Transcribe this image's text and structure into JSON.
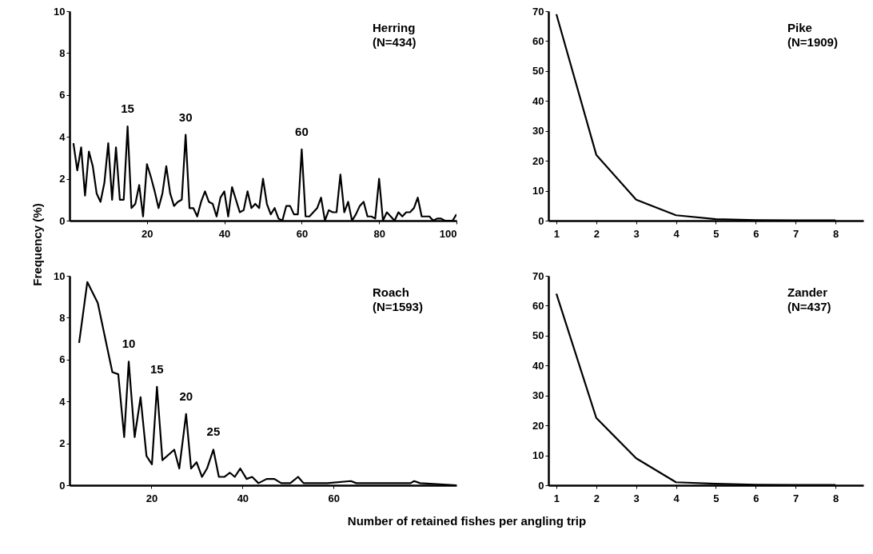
{
  "chart_data": [
    {
      "type": "line",
      "title": "Herring\n(N=434)",
      "ylabel": "Frequency (%)",
      "color": "#000000",
      "xlim": [
        0,
        100
      ],
      "xticks": [
        20,
        40,
        60,
        80,
        100
      ],
      "ylim": [
        0,
        10
      ],
      "yticks": [
        0,
        2,
        4,
        6,
        8,
        10
      ],
      "grid": false,
      "x": [
        1,
        2,
        3,
        4,
        5,
        6,
        7,
        8,
        9,
        10,
        11,
        12,
        13,
        14,
        15,
        16,
        17,
        18,
        19,
        20,
        21,
        22,
        23,
        24,
        25,
        26,
        27,
        28,
        29,
        30,
        31,
        32,
        33,
        34,
        35,
        36,
        37,
        38,
        39,
        40,
        41,
        42,
        43,
        44,
        45,
        46,
        47,
        48,
        49,
        50,
        51,
        52,
        53,
        54,
        55,
        56,
        57,
        58,
        59,
        60,
        61,
        62,
        63,
        64,
        65,
        66,
        67,
        68,
        69,
        70,
        71,
        72,
        73,
        74,
        75,
        76,
        77,
        78,
        79,
        80,
        81,
        82,
        83,
        84,
        85,
        86,
        87,
        88,
        89,
        90,
        91,
        92,
        93,
        94,
        95,
        96,
        97,
        98,
        99,
        100
      ],
      "values": [
        3.7,
        2.4,
        3.5,
        1.2,
        3.3,
        2.6,
        1.3,
        0.9,
        1.8,
        3.7,
        1.0,
        3.5,
        1.0,
        1.0,
        4.5,
        0.6,
        0.8,
        1.7,
        0.2,
        2.7,
        2.1,
        1.4,
        0.6,
        1.3,
        2.6,
        1.3,
        0.7,
        0.9,
        1.0,
        4.1,
        0.6,
        0.6,
        0.2,
        0.9,
        1.4,
        0.9,
        0.8,
        0.2,
        1.1,
        1.4,
        0.2,
        1.6,
        1.0,
        0.4,
        0.5,
        1.4,
        0.6,
        0.8,
        0.6,
        2.0,
        0.8,
        0.3,
        0.6,
        0.1,
        0,
        0.7,
        0.7,
        0.3,
        0.3,
        3.4,
        0.2,
        0.2,
        0.4,
        0.6,
        1.1,
        0,
        0.5,
        0.4,
        0.4,
        2.2,
        0.4,
        0.9,
        0,
        0.3,
        0.7,
        0.9,
        0.2,
        0.2,
        0.1,
        2.0,
        0,
        0.4,
        0.2,
        0,
        0.4,
        0.2,
        0.4,
        0.4,
        0.6,
        1.1,
        0.2,
        0.2,
        0.2,
        0,
        0.1,
        0.1,
        0,
        0,
        0,
        0.3
      ],
      "annotations": [
        {
          "text": "15",
          "x": 15,
          "y": 4.5
        },
        {
          "text": "30",
          "x": 30,
          "y": 4.1
        },
        {
          "text": "60",
          "x": 60,
          "y": 3.4
        }
      ]
    },
    {
      "type": "line",
      "title": "Pike\n(N=1909)",
      "color": "#000000",
      "xlim": [
        0.8,
        8.7
      ],
      "xticks": [
        1,
        2,
        3,
        4,
        5,
        6,
        7,
        8
      ],
      "ylim": [
        0,
        70
      ],
      "yticks": [
        0,
        10,
        20,
        30,
        40,
        50,
        60,
        70
      ],
      "grid": false,
      "x": [
        1,
        2,
        3,
        4,
        5,
        6,
        7,
        8
      ],
      "values": [
        69,
        22,
        7,
        1.8,
        0.5,
        0.2,
        0.1,
        0.1
      ]
    },
    {
      "type": "line",
      "title": "Roach\n(N=1593)",
      "xlabel": "Number of retained fishes per angling trip",
      "color": "#000000",
      "xlim": [
        2,
        87
      ],
      "xticks": [
        20,
        40,
        60
      ],
      "ylim": [
        0,
        10
      ],
      "yticks": [
        0,
        2,
        4,
        6,
        8,
        10
      ],
      "grid": false,
      "x": [
        4.1,
        5.9,
        8.2,
        11.4,
        12.7,
        14.0,
        15.0,
        16.3,
        17.6,
        18.9,
        20.1,
        21.2,
        22.4,
        25.0,
        26.1,
        27.6,
        28.7,
        29.9,
        31.1,
        32.2,
        33.6,
        34.8,
        36.0,
        37.2,
        38.3,
        39.5,
        40.9,
        42.1,
        43.5,
        45.3,
        47.0,
        48.5,
        50.5,
        52.2,
        53.4,
        58.6,
        63.8,
        65.0,
        70.8,
        76.9,
        77.7,
        79.0,
        87.0
      ],
      "values": [
        6.8,
        9.7,
        8.7,
        5.4,
        5.3,
        2.3,
        5.9,
        2.3,
        4.2,
        1.4,
        1.0,
        4.7,
        1.2,
        1.7,
        0.8,
        3.4,
        0.8,
        1.1,
        0.4,
        0.8,
        1.7,
        0.4,
        0.4,
        0.6,
        0.4,
        0.8,
        0.3,
        0.4,
        0.1,
        0.3,
        0.3,
        0.1,
        0.1,
        0.4,
        0.1,
        0.1,
        0.2,
        0.1,
        0.1,
        0.1,
        0.2,
        0.1,
        0
      ],
      "annotations": [
        {
          "text": "10",
          "x": 15.0,
          "y": 5.9
        },
        {
          "text": "15",
          "x": 21.2,
          "y": 4.7
        },
        {
          "text": "20",
          "x": 27.6,
          "y": 3.4
        },
        {
          "text": "25",
          "x": 33.6,
          "y": 1.7
        }
      ]
    },
    {
      "type": "line",
      "title": "Zander\n(N=437)",
      "color": "#000000",
      "xlim": [
        0.8,
        8.7
      ],
      "xticks": [
        1,
        2,
        3,
        4,
        5,
        6,
        7,
        8
      ],
      "ylim": [
        0,
        70
      ],
      "yticks": [
        0,
        10,
        20,
        30,
        40,
        50,
        60,
        70
      ],
      "grid": false,
      "x": [
        1,
        2,
        3,
        4,
        5,
        6,
        7,
        8
      ],
      "values": [
        64,
        22.5,
        9,
        1,
        0.5,
        0.2,
        0.1,
        0.1
      ]
    }
  ]
}
